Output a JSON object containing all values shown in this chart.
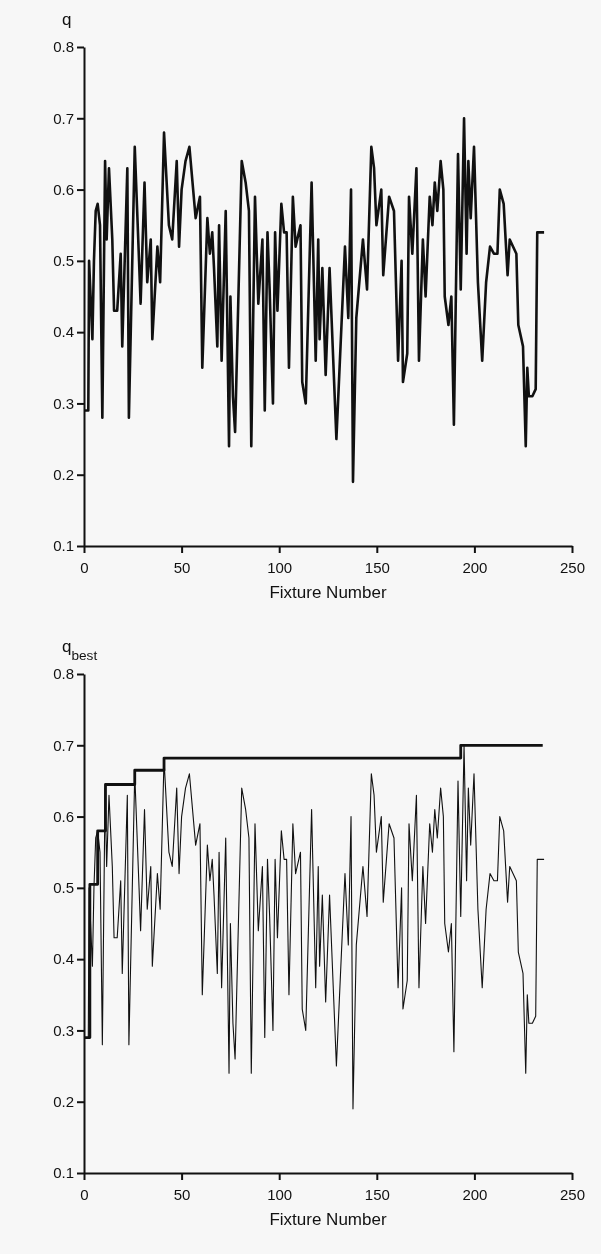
{
  "chart_data": [
    {
      "type": "line",
      "xlabel": "Fixture Number",
      "ylabel": "q",
      "xlim": [
        0,
        250
      ],
      "xticks": [
        0,
        50,
        100,
        150,
        200,
        250
      ],
      "ylim": [
        0.1,
        0.8
      ],
      "yticks": [
        0.1,
        0.2,
        0.3,
        0.4,
        0.5,
        0.6,
        0.7,
        0.8
      ],
      "grid": false,
      "series": [
        {
          "color": "#111111",
          "x": [
            0,
            2.2,
            2.6,
            4.3,
            5.1,
            6,
            7,
            8.2,
            9.4,
            10.8,
            11.6,
            12.8,
            14.5,
            15.4,
            17,
            18.8,
            19.6,
            22.2,
            23,
            26,
            28.2,
            29,
            31,
            32.4,
            34.2,
            35,
            37.6,
            39,
            41,
            43.5,
            45.2,
            47.5,
            48.7,
            50,
            52,
            54,
            57.2,
            59.4,
            60.6,
            63.2,
            64.5,
            65.7,
            66.6,
            68.3,
            69.2,
            70.5,
            72.6,
            74.3,
            75,
            76.3,
            77.4,
            80.8,
            82.8,
            84.5,
            85.7,
            87.6,
            89.3,
            91.4,
            92.6,
            94,
            95.1,
            96.8,
            97.9,
            99.1,
            101.1,
            102.5,
            103.8,
            105,
            107,
            108.4,
            110.9,
            111.8,
            113.6,
            116.6,
            118.7,
            120,
            120.7,
            122.1,
            123.8,
            125.8,
            129.3,
            133.7,
            135.4,
            136.8,
            137.8,
            139.5,
            142.9,
            145,
            147.2,
            148.6,
            149.8,
            152.3,
            153.3,
            156.3,
            158.8,
            160.9,
            162.7,
            163.4,
            165.6,
            166.5,
            168.2,
            170.3,
            171.6,
            173.6,
            175,
            177.1,
            178.5,
            179.7,
            181,
            182.7,
            184.1,
            184.8,
            186.7,
            188.2,
            189.5,
            191.6,
            193,
            194.7,
            196,
            196.9,
            198.1,
            199.8,
            201.8,
            204,
            206,
            208,
            210,
            211.8,
            213,
            215,
            217,
            218.1,
            221.5,
            222.5,
            224.9,
            226.3,
            227.1,
            227.9,
            229.7,
            231.4,
            232.2,
            235.7
          ],
          "values": [
            0.29,
            0.29,
            0.5,
            0.39,
            0.5,
            0.57,
            0.58,
            0.55,
            0.28,
            0.64,
            0.53,
            0.63,
            0.53,
            0.43,
            0.43,
            0.51,
            0.38,
            0.63,
            0.28,
            0.66,
            0.5,
            0.44,
            0.61,
            0.47,
            0.53,
            0.39,
            0.52,
            0.47,
            0.68,
            0.55,
            0.53,
            0.64,
            0.52,
            0.6,
            0.64,
            0.66,
            0.56,
            0.59,
            0.35,
            0.56,
            0.51,
            0.54,
            0.49,
            0.38,
            0.55,
            0.36,
            0.57,
            0.24,
            0.45,
            0.31,
            0.26,
            0.64,
            0.61,
            0.57,
            0.24,
            0.59,
            0.44,
            0.53,
            0.29,
            0.54,
            0.46,
            0.3,
            0.54,
            0.43,
            0.58,
            0.54,
            0.54,
            0.35,
            0.59,
            0.52,
            0.55,
            0.33,
            0.3,
            0.61,
            0.36,
            0.53,
            0.39,
            0.49,
            0.34,
            0.49,
            0.25,
            0.52,
            0.42,
            0.6,
            0.19,
            0.42,
            0.53,
            0.46,
            0.66,
            0.63,
            0.55,
            0.6,
            0.48,
            0.59,
            0.57,
            0.36,
            0.5,
            0.33,
            0.37,
            0.59,
            0.51,
            0.63,
            0.36,
            0.53,
            0.45,
            0.59,
            0.55,
            0.61,
            0.57,
            0.64,
            0.6,
            0.45,
            0.41,
            0.45,
            0.27,
            0.65,
            0.46,
            0.7,
            0.51,
            0.64,
            0.56,
            0.66,
            0.47,
            0.36,
            0.47,
            0.52,
            0.51,
            0.51,
            0.6,
            0.58,
            0.48,
            0.53,
            0.51,
            0.41,
            0.38,
            0.24,
            0.35,
            0.31,
            0.31,
            0.32,
            0.54,
            0.54
          ]
        }
      ]
    },
    {
      "type": "line",
      "xlabel": "Fixture Number",
      "ylabel": "q$_{best}$",
      "xlim": [
        0,
        250
      ],
      "xticks": [
        0,
        50,
        100,
        150,
        200,
        250
      ],
      "ylim": [
        0.1,
        0.8
      ],
      "yticks": [
        0.1,
        0.2,
        0.3,
        0.4,
        0.5,
        0.6,
        0.7,
        0.8
      ],
      "grid": false,
      "series": [
        {
          "color": "#111111",
          "x": [
            0,
            2.2,
            2.6,
            4.3,
            5.1,
            6,
            7,
            8.2,
            9.4,
            10.8,
            11.6,
            12.8,
            14.5,
            15.4,
            17,
            18.8,
            19.6,
            22.2,
            23,
            26,
            28.2,
            29,
            31,
            32.4,
            34.2,
            35,
            37.6,
            39,
            41,
            43.5,
            45.2,
            47.5,
            48.7,
            50,
            52,
            54,
            57.2,
            59.4,
            60.6,
            63.2,
            64.5,
            65.7,
            66.6,
            68.3,
            69.2,
            70.5,
            72.6,
            74.3,
            75,
            76.3,
            77.4,
            80.8,
            82.8,
            84.5,
            85.7,
            87.6,
            89.3,
            91.4,
            92.6,
            94,
            95.1,
            96.8,
            97.9,
            99.1,
            101.1,
            102.5,
            103.8,
            105,
            107,
            108.4,
            110.9,
            111.8,
            113.6,
            116.6,
            118.7,
            120,
            120.7,
            122.1,
            123.8,
            125.8,
            129.3,
            133.7,
            135.4,
            136.8,
            137.8,
            139.5,
            142.9,
            145,
            147.2,
            148.6,
            149.8,
            152.3,
            153.3,
            156.3,
            158.8,
            160.9,
            162.7,
            163.4,
            165.6,
            166.5,
            168.2,
            170.3,
            171.6,
            173.6,
            175,
            177.1,
            178.5,
            179.7,
            181,
            182.7,
            184.1,
            184.8,
            186.7,
            188.2,
            189.5,
            191.6,
            193,
            194.7,
            196,
            196.9,
            198.1,
            199.8,
            201.8,
            204,
            206,
            208,
            210,
            211.8,
            213,
            215,
            217,
            218.1,
            221.5,
            222.5,
            224.9,
            226.3,
            227.1,
            227.9,
            229.7,
            231.4,
            232.2,
            235.7
          ],
          "values": [
            0.29,
            0.29,
            0.5,
            0.39,
            0.5,
            0.57,
            0.58,
            0.55,
            0.28,
            0.64,
            0.53,
            0.63,
            0.53,
            0.43,
            0.43,
            0.51,
            0.38,
            0.63,
            0.28,
            0.66,
            0.5,
            0.44,
            0.61,
            0.47,
            0.53,
            0.39,
            0.52,
            0.47,
            0.68,
            0.55,
            0.53,
            0.64,
            0.52,
            0.6,
            0.64,
            0.66,
            0.56,
            0.59,
            0.35,
            0.56,
            0.51,
            0.54,
            0.49,
            0.38,
            0.55,
            0.36,
            0.57,
            0.24,
            0.45,
            0.31,
            0.26,
            0.64,
            0.61,
            0.57,
            0.24,
            0.59,
            0.44,
            0.53,
            0.29,
            0.54,
            0.46,
            0.3,
            0.54,
            0.43,
            0.58,
            0.54,
            0.54,
            0.35,
            0.59,
            0.52,
            0.55,
            0.33,
            0.3,
            0.61,
            0.36,
            0.53,
            0.39,
            0.49,
            0.34,
            0.49,
            0.25,
            0.52,
            0.42,
            0.6,
            0.19,
            0.42,
            0.53,
            0.46,
            0.66,
            0.63,
            0.55,
            0.6,
            0.48,
            0.59,
            0.57,
            0.36,
            0.5,
            0.33,
            0.37,
            0.59,
            0.51,
            0.63,
            0.36,
            0.53,
            0.45,
            0.59,
            0.55,
            0.61,
            0.57,
            0.64,
            0.6,
            0.45,
            0.41,
            0.45,
            0.27,
            0.65,
            0.46,
            0.7,
            0.51,
            0.64,
            0.56,
            0.66,
            0.47,
            0.36,
            0.47,
            0.52,
            0.51,
            0.51,
            0.6,
            0.58,
            0.48,
            0.53,
            0.51,
            0.41,
            0.38,
            0.24,
            0.35,
            0.31,
            0.31,
            0.32,
            0.54,
            0.54
          ]
        },
        {
          "type": "step",
          "color": "#111111",
          "x": [
            0,
            3,
            7,
            11,
            26,
            41,
            193,
            235
          ],
          "values": [
            0.29,
            0.505,
            0.58,
            0.645,
            0.665,
            0.682,
            0.7,
            0.7
          ]
        }
      ]
    }
  ]
}
